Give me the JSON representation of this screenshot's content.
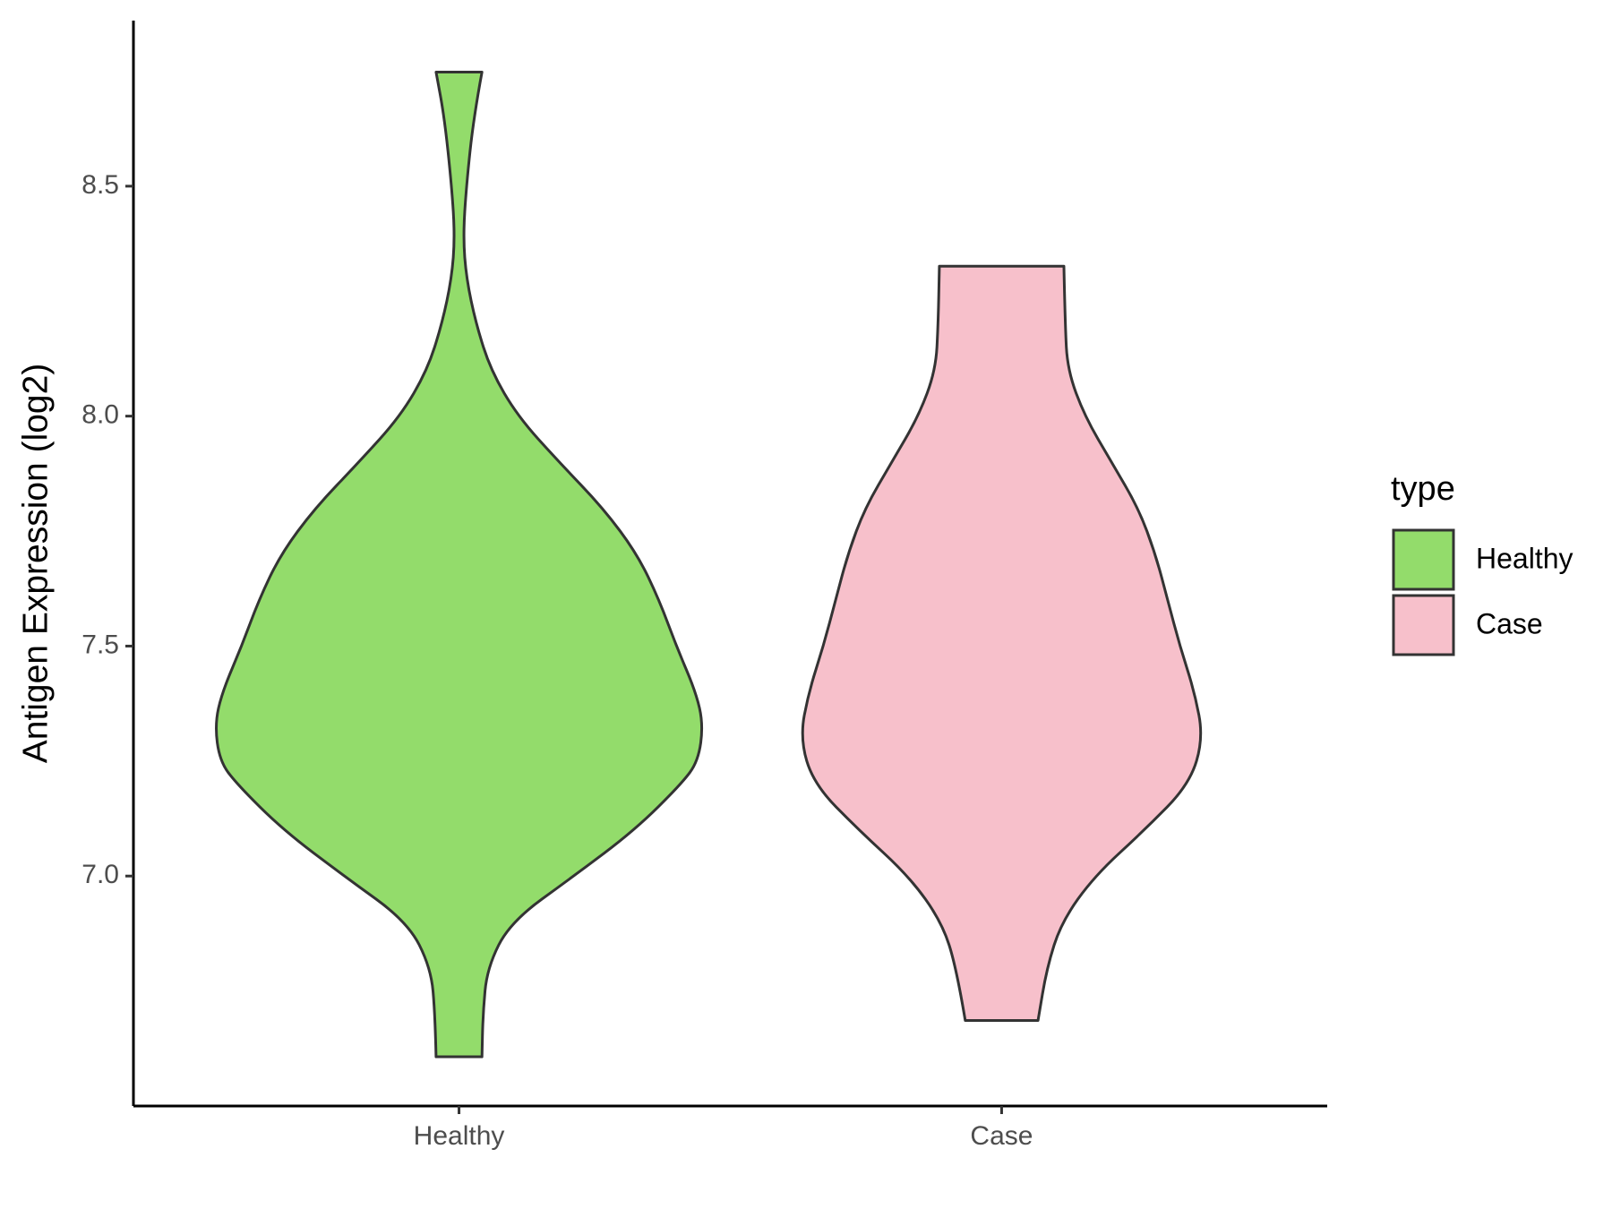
{
  "chart_data": {
    "type": "violin",
    "y_label": "Antigen Expression (log2)",
    "categories": [
      "Healthy",
      "Case"
    ],
    "legend_title": "type",
    "ylim": [
      6.5,
      8.86
    ],
    "yticks": [
      {
        "value": 7,
        "label": "7.0"
      },
      7.5,
      {
        "value": 8,
        "label": "8.0"
      },
      8.5
    ],
    "series": [
      {
        "name": "Healthy",
        "color": "#93dc6b",
        "y": [
          8.748,
          8.65,
          8.5,
          8.39,
          8.3,
          8.2,
          8.1,
          8.0,
          7.9,
          7.8,
          7.7,
          7.6,
          7.5,
          7.4,
          7.33,
          7.25,
          7.2,
          7.1,
          7.0,
          6.9,
          6.8,
          6.7,
          6.607
        ],
        "width": [
          0.094,
          0.06,
          0.03,
          0.017,
          0.03,
          0.07,
          0.13,
          0.24,
          0.41,
          0.59,
          0.73,
          0.82,
          0.89,
          0.97,
          1.0,
          0.98,
          0.91,
          0.72,
          0.47,
          0.21,
          0.115,
          0.098,
          0.094
        ]
      },
      {
        "name": "Case",
        "color": "#f7c0cb",
        "y": [
          8.326,
          8.2,
          8.1,
          8.0,
          7.9,
          7.8,
          7.7,
          7.6,
          7.5,
          7.4,
          7.3,
          7.2,
          7.1,
          7.0,
          6.9,
          6.8,
          6.686
        ],
        "width": [
          0.255,
          0.26,
          0.27,
          0.34,
          0.45,
          0.56,
          0.63,
          0.68,
          0.73,
          0.79,
          0.826,
          0.77,
          0.585,
          0.38,
          0.245,
          0.185,
          0.149
        ]
      }
    ]
  }
}
